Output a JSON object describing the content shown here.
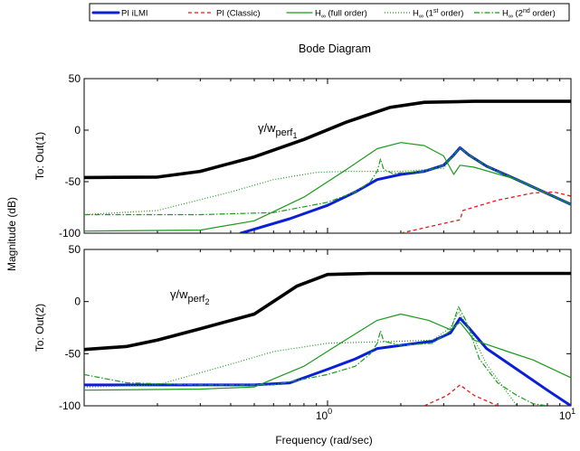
{
  "chart_data": {
    "type": "line",
    "title": "Bode Diagram",
    "xlabel": "Frequency  (rad/sec)",
    "ylabel": "Magnitude (dB)",
    "xscale": "log",
    "xlim": [
      0.1,
      10
    ],
    "x_ticks": [
      {
        "value": 1,
        "base": "10",
        "exp": "0"
      },
      {
        "value": 10,
        "base": "10",
        "exp": "1"
      }
    ],
    "grid": false,
    "legend_placement": "top-outside",
    "legend": [
      {
        "key": "ilmi",
        "text": "PI iLMI",
        "color": "#0a1fd6",
        "style": "solid-thick"
      },
      {
        "key": "classic",
        "text": "PI (Classic)",
        "color": "#e01818",
        "style": "dashed"
      },
      {
        "key": "hfull",
        "text": "H",
        "sub": "∞",
        "rest": " (full order)",
        "color": "#1a9a1a",
        "style": "solid"
      },
      {
        "key": "h1",
        "text": "H",
        "sub": "∞",
        "rest": " (1",
        "sup": "st",
        "rest2": " order)",
        "color": "#1a9a1a",
        "style": "dotted"
      },
      {
        "key": "h2",
        "text": "H",
        "sub": "∞",
        "rest": " (2",
        "sup": "nd",
        "rest2": " order)",
        "color": "#1a9a1a",
        "style": "dashdot"
      }
    ],
    "panels": [
      {
        "ylabel": "To: Out(1)",
        "ylim": [
          -100,
          50
        ],
        "yticks": [
          -100,
          -50,
          0,
          50
        ],
        "annotation": {
          "main": "γ/w",
          "sub": "perf",
          "subsub": "1"
        },
        "series": [
          {
            "key": "wperf",
            "color": "#000000",
            "style": "solid-heavy",
            "points": [
              [
                0.1,
                -46
              ],
              [
                0.2,
                -45.5
              ],
              [
                0.3,
                -40
              ],
              [
                0.5,
                -26
              ],
              [
                0.8,
                -9
              ],
              [
                1.2,
                8
              ],
              [
                1.8,
                22
              ],
              [
                2.5,
                27
              ],
              [
                4,
                28
              ],
              [
                10,
                28
              ]
            ]
          },
          {
            "key": "ilmi",
            "color": "#0a1fd6",
            "style": "solid-thick",
            "points": [
              [
                0.44,
                -100
              ],
              [
                0.7,
                -86
              ],
              [
                1,
                -73
              ],
              [
                1.3,
                -60
              ],
              [
                1.6,
                -48
              ],
              [
                2,
                -43
              ],
              [
                2.5,
                -40
              ],
              [
                3,
                -34
              ],
              [
                3.3,
                -24
              ],
              [
                3.5,
                -17
              ],
              [
                3.8,
                -24
              ],
              [
                4.5,
                -35
              ],
              [
                6,
                -48
              ],
              [
                10,
                -72
              ]
            ]
          },
          {
            "key": "classic",
            "color": "#e01818",
            "style": "dashed",
            "points": [
              [
                2,
                -100
              ],
              [
                3.2,
                -89
              ],
              [
                3.5,
                -87
              ],
              [
                3.6,
                -78
              ],
              [
                5,
                -68
              ],
              [
                7,
                -61
              ],
              [
                8.5,
                -60
              ],
              [
                10,
                -64
              ]
            ]
          },
          {
            "key": "hfull",
            "color": "#1a9a1a",
            "style": "solid",
            "points": [
              [
                0.1,
                -98
              ],
              [
                0.3,
                -97
              ],
              [
                0.5,
                -88
              ],
              [
                0.8,
                -65
              ],
              [
                1.2,
                -38
              ],
              [
                1.6,
                -18
              ],
              [
                2,
                -12
              ],
              [
                2.5,
                -15
              ],
              [
                3,
                -25
              ],
              [
                3.3,
                -43
              ],
              [
                3.5,
                -34
              ],
              [
                4,
                -36
              ],
              [
                6,
                -48
              ],
              [
                10,
                -72
              ]
            ]
          },
          {
            "key": "h1",
            "color": "#1a9a1a",
            "style": "dotted",
            "points": [
              [
                0.1,
                -82
              ],
              [
                0.2,
                -78
              ],
              [
                0.4,
                -60
              ],
              [
                0.6,
                -48
              ],
              [
                0.9,
                -41
              ],
              [
                1.2,
                -40
              ],
              [
                2,
                -40
              ],
              [
                3,
                -37
              ],
              [
                3.3,
                -24
              ],
              [
                3.5,
                -17
              ],
              [
                3.8,
                -24
              ],
              [
                4.5,
                -35
              ],
              [
                6,
                -48
              ],
              [
                10,
                -72
              ]
            ]
          },
          {
            "key": "h2",
            "color": "#1a9a1a",
            "style": "dashdot",
            "points": [
              [
                0.1,
                -82
              ],
              [
                0.3,
                -82
              ],
              [
                0.6,
                -80
              ],
              [
                1,
                -70
              ],
              [
                1.3,
                -60
              ],
              [
                1.5,
                -50
              ],
              [
                1.6,
                -40
              ],
              [
                1.65,
                -28
              ],
              [
                1.7,
                -38
              ],
              [
                1.85,
                -42
              ],
              [
                2.5,
                -40
              ],
              [
                3,
                -34
              ],
              [
                3.3,
                -24
              ],
              [
                3.5,
                -17
              ],
              [
                3.8,
                -24
              ],
              [
                4.5,
                -35
              ],
              [
                6,
                -48
              ],
              [
                10,
                -72
              ]
            ]
          }
        ]
      },
      {
        "ylabel": "To: Out(2)",
        "ylim": [
          -100,
          50
        ],
        "yticks": [
          -100,
          -50,
          0,
          50
        ],
        "annotation": {
          "main": "γ/w",
          "sub": "perf",
          "subsub": "2"
        },
        "series": [
          {
            "key": "wperf",
            "color": "#000000",
            "style": "solid-heavy",
            "points": [
              [
                0.1,
                -46
              ],
              [
                0.15,
                -43
              ],
              [
                0.2,
                -37
              ],
              [
                0.3,
                -26
              ],
              [
                0.5,
                -12
              ],
              [
                0.75,
                15
              ],
              [
                1,
                26
              ],
              [
                1.5,
                27
              ],
              [
                3,
                27
              ],
              [
                10,
                27
              ]
            ]
          },
          {
            "key": "ilmi",
            "color": "#0a1fd6",
            "style": "solid-thick",
            "points": [
              [
                0.1,
                -80
              ],
              [
                0.5,
                -80
              ],
              [
                0.7,
                -78
              ],
              [
                1,
                -65
              ],
              [
                1.3,
                -55
              ],
              [
                1.6,
                -45
              ],
              [
                2,
                -42
              ],
              [
                2.7,
                -38
              ],
              [
                3.2,
                -30
              ],
              [
                3.5,
                -16
              ],
              [
                3.8,
                -25
              ],
              [
                4.5,
                -45
              ],
              [
                6,
                -65
              ],
              [
                8,
                -85
              ],
              [
                10,
                -100
              ]
            ]
          },
          {
            "key": "classic",
            "color": "#e01818",
            "style": "dashed",
            "points": [
              [
                2.5,
                -100
              ],
              [
                3.1,
                -90
              ],
              [
                3.5,
                -80
              ],
              [
                4,
                -90
              ],
              [
                5,
                -100
              ]
            ]
          },
          {
            "key": "hfull",
            "color": "#1a9a1a",
            "style": "solid",
            "points": [
              [
                0.1,
                -85
              ],
              [
                0.3,
                -84
              ],
              [
                0.5,
                -82
              ],
              [
                0.8,
                -62
              ],
              [
                1.2,
                -36
              ],
              [
                1.6,
                -18
              ],
              [
                2,
                -12
              ],
              [
                2.6,
                -18
              ],
              [
                3.2,
                -27
              ],
              [
                3.5,
                -20
              ],
              [
                4,
                -37
              ],
              [
                5.5,
                -48
              ],
              [
                7,
                -56
              ],
              [
                10,
                -73
              ]
            ]
          },
          {
            "key": "h1",
            "color": "#1a9a1a",
            "style": "dotted",
            "points": [
              [
                0.1,
                -82
              ],
              [
                0.2,
                -80
              ],
              [
                0.4,
                -60
              ],
              [
                0.6,
                -48
              ],
              [
                1,
                -40
              ],
              [
                2,
                -38
              ],
              [
                2.7,
                -37
              ],
              [
                3.2,
                -25
              ],
              [
                3.45,
                -10
              ],
              [
                3.8,
                -25
              ],
              [
                4.5,
                -60
              ],
              [
                5.5,
                -88
              ],
              [
                6,
                -100
              ]
            ]
          },
          {
            "key": "h2",
            "color": "#1a9a1a",
            "style": "dashdot",
            "points": [
              [
                0.1,
                -70
              ],
              [
                0.15,
                -78
              ],
              [
                0.3,
                -80
              ],
              [
                0.6,
                -80
              ],
              [
                1,
                -70
              ],
              [
                1.3,
                -62
              ],
              [
                1.5,
                -50
              ],
              [
                1.6,
                -40
              ],
              [
                1.65,
                -28
              ],
              [
                1.7,
                -38
              ],
              [
                2,
                -42
              ],
              [
                2.7,
                -40
              ],
              [
                3.2,
                -28
              ],
              [
                3.45,
                -5
              ],
              [
                3.7,
                -18
              ],
              [
                4.2,
                -55
              ],
              [
                5,
                -78
              ],
              [
                6,
                -90
              ],
              [
                7,
                -98
              ],
              [
                8,
                -100
              ]
            ]
          }
        ]
      }
    ]
  }
}
